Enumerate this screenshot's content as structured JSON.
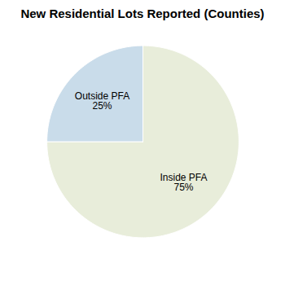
{
  "chart_data": {
    "type": "pie",
    "title": "New Residential Lots Reported (Counties)",
    "categories": [
      "Inside PFA",
      "Outside PFA"
    ],
    "values": [
      75,
      25
    ],
    "value_labels": [
      "75%",
      "25%"
    ],
    "data_labels": true,
    "colors": [
      "#e8edda",
      "#c9dcea"
    ]
  }
}
